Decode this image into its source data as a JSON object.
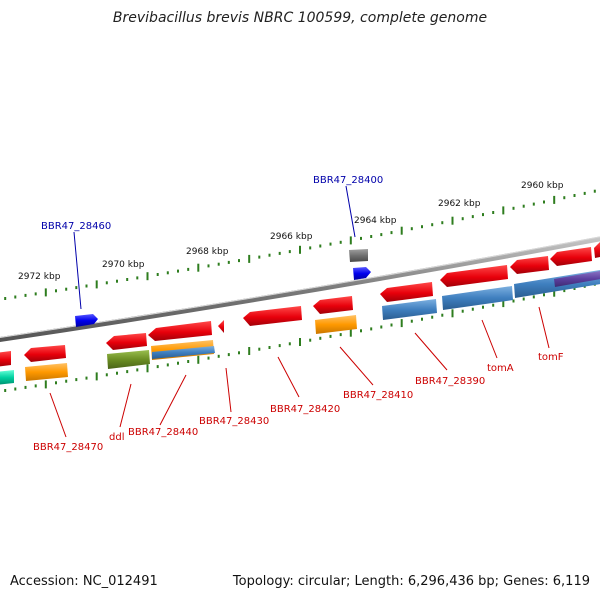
{
  "title": "Brevibacillus brevis NBRC 100599, complete genome",
  "footer": {
    "accession": "Accession: NC_012491",
    "topology": "Topology: circular; Length: 6,296,436 bp; Genes: 6,119"
  },
  "ticks": {
    "labels": [
      "2960 kbp",
      "2962 kbp",
      "2964 kbp",
      "2966 kbp",
      "2968 kbp",
      "2970 kbp",
      "2972 kbp"
    ]
  },
  "genes": {
    "forward": [
      "BBR47_28460",
      "BBR47_28400"
    ],
    "reverse": [
      "BBR47_28470",
      "ddl",
      "BBR47_28440",
      "BBR47_28430",
      "BBR47_28420",
      "BBR47_28410",
      "BBR47_28390",
      "tomA",
      "tomF"
    ]
  },
  "colors": {
    "backbone": "#8a8a8a",
    "tick": "#2e7d1e",
    "gene_arrow": "#e8000b",
    "forward_label": "#0000aa",
    "reverse_label": "#cc0000",
    "cds_blue": "#3f7fbf",
    "cds_orange": "#ff9900",
    "cds_olive": "#6b8e23",
    "cds_purple": "#5b3f9f",
    "cds_gray": "#707070",
    "forward_gene": "#0000ee",
    "teal": "#00d0a0"
  }
}
